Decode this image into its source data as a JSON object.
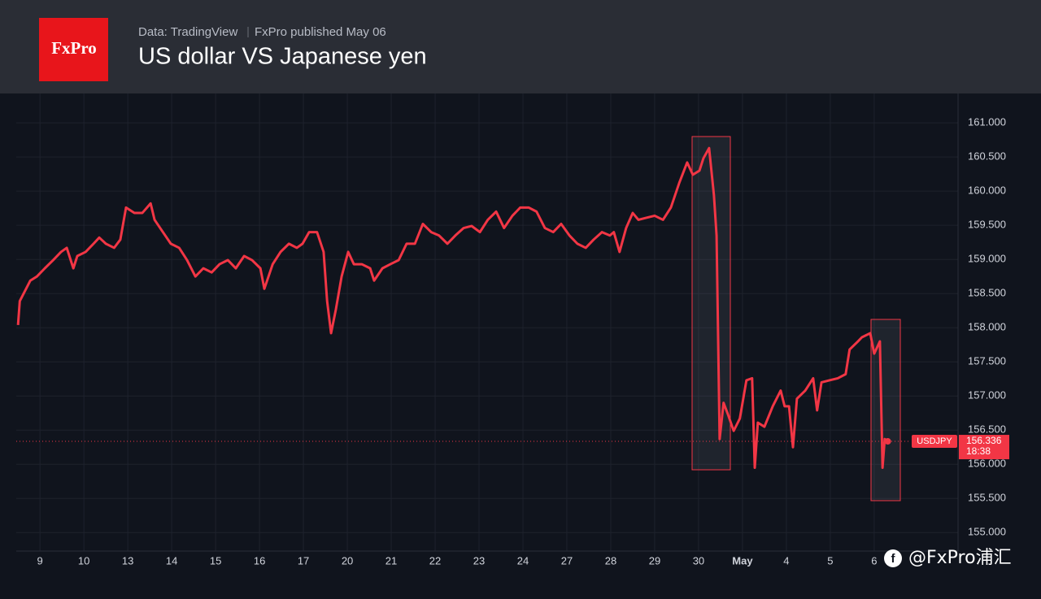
{
  "chart_data": {
    "type": "line",
    "source": "Data: TradingView",
    "published": "FxPro published May 06",
    "title": "US dollar VS Japanese yen",
    "logo": "FxPro",
    "countdown": "18:38",
    "watermark": "@FxPro浦汇",
    "grid": true,
    "xlim": [
      -0.54,
      20.91
    ],
    "ylim": [
      154.73,
      161.43
    ],
    "xticks": [
      {
        "value": 0,
        "label": "9"
      },
      {
        "value": 1,
        "label": "10"
      },
      {
        "value": 2,
        "label": "13"
      },
      {
        "value": 3,
        "label": "14"
      },
      {
        "value": 4,
        "label": "15"
      },
      {
        "value": 5,
        "label": "16"
      },
      {
        "value": 6,
        "label": "17"
      },
      {
        "value": 7,
        "label": "20"
      },
      {
        "value": 8,
        "label": "21"
      },
      {
        "value": 9,
        "label": "22"
      },
      {
        "value": 10,
        "label": "23"
      },
      {
        "value": 11,
        "label": "24"
      },
      {
        "value": 12,
        "label": "27"
      },
      {
        "value": 13,
        "label": "28"
      },
      {
        "value": 14,
        "label": "29"
      },
      {
        "value": 15,
        "label": "30"
      },
      {
        "value": 16,
        "label": "May"
      },
      {
        "value": 17,
        "label": "4"
      },
      {
        "value": 18,
        "label": "5"
      },
      {
        "value": 19,
        "label": "6"
      }
    ],
    "yticks": [
      {
        "value": 155,
        "label": "155.000"
      },
      {
        "value": 155.5,
        "label": "155.500"
      },
      {
        "value": 156,
        "label": "156.000"
      },
      {
        "value": 156.5,
        "label": "156.500"
      },
      {
        "value": 157,
        "label": "157.000"
      },
      {
        "value": 157.5,
        "label": "157.500"
      },
      {
        "value": 158,
        "label": "158.000"
      },
      {
        "value": 158.5,
        "label": "158.500"
      },
      {
        "value": 159,
        "label": "159.000"
      },
      {
        "value": 159.5,
        "label": "159.500"
      },
      {
        "value": 160,
        "label": "160.000"
      },
      {
        "value": 160.5,
        "label": "160.500"
      },
      {
        "value": 161,
        "label": "161.000"
      }
    ],
    "x": [
      -0.5,
      -0.46,
      -0.22,
      -0.07,
      0.11,
      0.3,
      0.48,
      0.61,
      0.76,
      0.85,
      1.04,
      1.22,
      1.35,
      1.5,
      1.69,
      1.83,
      1.96,
      2.15,
      2.33,
      2.52,
      2.61,
      2.8,
      2.98,
      3.17,
      3.35,
      3.54,
      3.72,
      3.91,
      4.09,
      4.28,
      4.46,
      4.65,
      4.83,
      5.02,
      5.11,
      5.3,
      5.48,
      5.67,
      5.85,
      5.98,
      6.13,
      6.31,
      6.46,
      6.54,
      6.63,
      6.74,
      6.87,
      7.02,
      7.15,
      7.33,
      7.52,
      7.61,
      7.8,
      7.98,
      8.17,
      8.35,
      8.54,
      8.72,
      8.91,
      9.09,
      9.28,
      9.46,
      9.65,
      9.83,
      10.02,
      10.2,
      10.39,
      10.57,
      10.76,
      10.94,
      11.13,
      11.31,
      11.5,
      11.69,
      11.87,
      12.06,
      12.24,
      12.43,
      12.61,
      12.8,
      12.98,
      13.07,
      13.2,
      13.35,
      13.5,
      13.63,
      13.81,
      14.0,
      14.19,
      14.37,
      14.56,
      14.74,
      14.87,
      15.02,
      15.11,
      15.24,
      15.35,
      15.41,
      15.48,
      15.57,
      15.67,
      15.8,
      15.94,
      16.09,
      16.22,
      16.28,
      16.35,
      16.5,
      16.69,
      16.87,
      16.96,
      17.06,
      17.15,
      17.24,
      17.43,
      17.61,
      17.7,
      17.8,
      17.98,
      18.17,
      18.35,
      18.44,
      18.63,
      18.72,
      18.91,
      19.0,
      19.13,
      19.19,
      19.24,
      19.31
    ],
    "series": [
      {
        "name": "USDJPY",
        "color": "#f23645",
        "values": [
          158.04,
          158.39,
          158.69,
          158.75,
          158.87,
          158.99,
          159.11,
          159.17,
          158.87,
          159.05,
          159.11,
          159.23,
          159.32,
          159.23,
          159.17,
          159.29,
          159.76,
          159.68,
          159.68,
          159.82,
          159.58,
          159.4,
          159.23,
          159.17,
          158.99,
          158.75,
          158.87,
          158.81,
          158.93,
          158.99,
          158.87,
          159.05,
          158.99,
          158.87,
          158.57,
          158.93,
          159.11,
          159.23,
          159.17,
          159.23,
          159.4,
          159.4,
          159.11,
          158.39,
          157.92,
          158.27,
          158.75,
          159.11,
          158.93,
          158.93,
          158.87,
          158.69,
          158.87,
          158.93,
          158.99,
          159.23,
          159.23,
          159.52,
          159.4,
          159.35,
          159.23,
          159.35,
          159.46,
          159.49,
          159.4,
          159.58,
          159.7,
          159.46,
          159.64,
          159.76,
          159.76,
          159.7,
          159.46,
          159.4,
          159.52,
          159.35,
          159.23,
          159.17,
          159.29,
          159.4,
          159.35,
          159.4,
          159.11,
          159.46,
          159.68,
          159.58,
          159.61,
          159.64,
          159.58,
          159.76,
          160.12,
          160.42,
          160.24,
          160.3,
          160.48,
          160.63,
          159.94,
          159.35,
          156.37,
          156.9,
          156.73,
          156.49,
          156.67,
          157.23,
          157.26,
          155.95,
          156.61,
          156.55,
          156.85,
          157.08,
          156.85,
          156.85,
          156.25,
          156.96,
          157.08,
          157.26,
          156.79,
          157.2,
          157.23,
          157.26,
          157.32,
          157.68,
          157.8,
          157.86,
          157.92,
          157.62,
          157.8,
          155.95,
          156.37,
          156.336
        ]
      }
    ]
  }
}
